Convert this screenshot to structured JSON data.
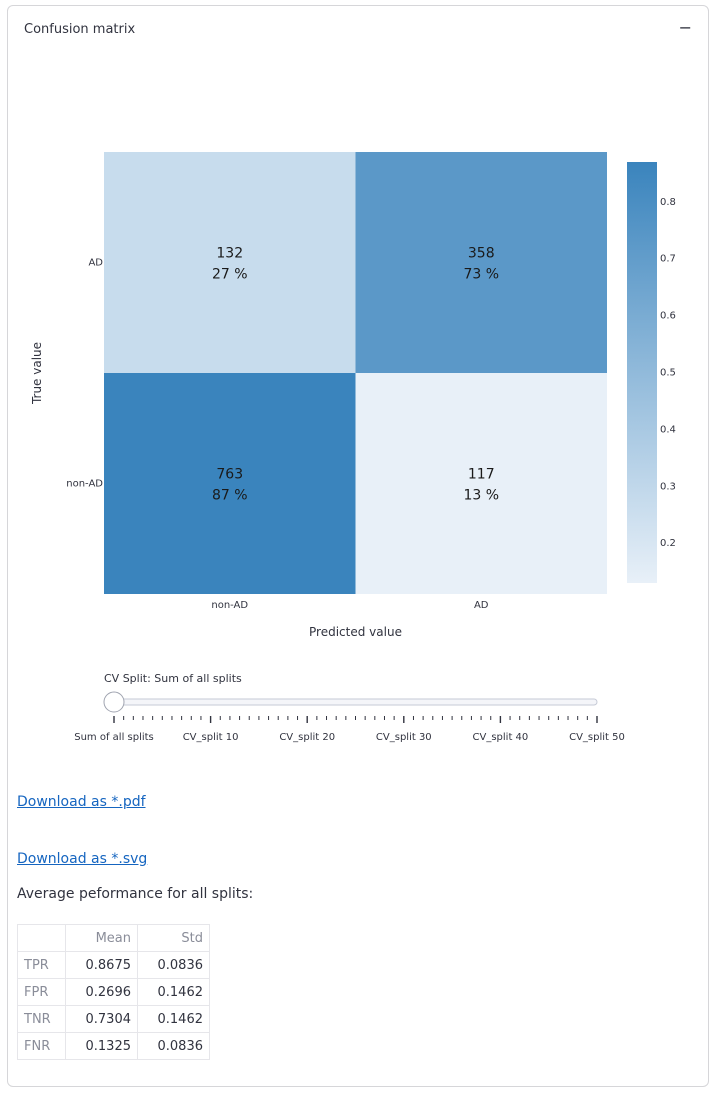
{
  "expander": {
    "title": "Confusion matrix",
    "toggle_icon": "minus-icon",
    "toggle_glyph": "−"
  },
  "chart_data": {
    "type": "heatmap",
    "xlabel": "Predicted value",
    "ylabel": "True value",
    "x_categories": [
      "non-AD",
      "AD"
    ],
    "y_categories": [
      "AD",
      "non-AD"
    ],
    "cells": [
      {
        "row": "AD",
        "col": "non-AD",
        "count": "132",
        "percent": "27 %",
        "value": 0.27
      },
      {
        "row": "AD",
        "col": "AD",
        "count": "358",
        "percent": "73 %",
        "value": 0.73
      },
      {
        "row": "non-AD",
        "col": "non-AD",
        "count": "763",
        "percent": "87 %",
        "value": 0.87
      },
      {
        "row": "non-AD",
        "col": "AD",
        "count": "117",
        "percent": "13 %",
        "value": 0.13
      }
    ],
    "colorbar": {
      "range": [
        0.13,
        0.87
      ],
      "ticks": [
        "0.2",
        "0.3",
        "0.4",
        "0.5",
        "0.6",
        "0.7",
        "0.8"
      ],
      "color_low": "#e8f0f8",
      "color_high": "#3a84bd"
    },
    "grid": false
  },
  "slider": {
    "label": "CV Split: Sum of all splits",
    "value_index": 0,
    "step_count": 50,
    "tick_labels": [
      "Sum of all splits",
      "CV_split 10",
      "CV_split 20",
      "CV_split 30",
      "CV_split 40",
      "CV_split 50"
    ]
  },
  "downloads": {
    "pdf_label": "Download as *.pdf",
    "svg_label": "Download as *.svg"
  },
  "performance": {
    "heading": "Average peformance for all splits:",
    "columns": [
      "",
      "Mean",
      "Std"
    ],
    "rows": [
      {
        "label": "TPR",
        "mean": "0.8675",
        "std": "0.0836"
      },
      {
        "label": "FPR",
        "mean": "0.2696",
        "std": "0.1462"
      },
      {
        "label": "TNR",
        "mean": "0.7304",
        "std": "0.1462"
      },
      {
        "label": "FNR",
        "mean": "0.1325",
        "std": "0.0836"
      }
    ]
  },
  "colors": {
    "link": "#1565c0",
    "border": "#d6d6d9"
  }
}
